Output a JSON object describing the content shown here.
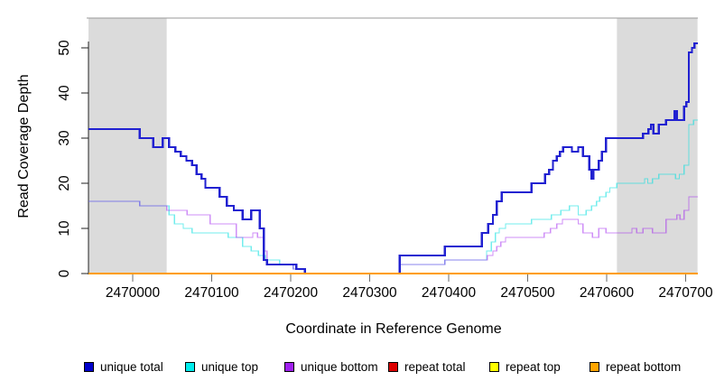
{
  "chart_data": {
    "type": "line",
    "title": "",
    "xlabel": "Coordinate in Reference Genome",
    "ylabel": "Read Coverage Depth",
    "xlim": [
      2469944,
      2470715
    ],
    "ylim": [
      0,
      52
    ],
    "x_ticks": [
      2470000,
      2470100,
      2470200,
      2470300,
      2470400,
      2470500,
      2470600,
      2470700
    ],
    "y_ticks": [
      0,
      10,
      20,
      30,
      40,
      50
    ],
    "grid": false,
    "legend_position": "bottom",
    "shaded_regions": [
      {
        "x0": 2469944,
        "x1": 2470043,
        "color": "#DBDBDB"
      },
      {
        "x0": 2470613,
        "x1": 2470715,
        "color": "#DBDBDB"
      }
    ],
    "series": [
      {
        "name": "repeat total",
        "color": "#DD0000",
        "opacity": 1,
        "width": 1.4,
        "steps": [
          [
            2469944,
            0
          ]
        ]
      },
      {
        "name": "repeat top",
        "color": "#FFFF00",
        "opacity": 1,
        "width": 1.4,
        "steps": [
          [
            2469944,
            0
          ]
        ]
      },
      {
        "name": "unique top",
        "color": "#00DEDE",
        "opacity": 0.55,
        "width": 1.4,
        "steps": [
          [
            2469944,
            16
          ],
          [
            2470009,
            15
          ],
          [
            2470046,
            13
          ],
          [
            2470053,
            11
          ],
          [
            2470064,
            10
          ],
          [
            2470075,
            9
          ],
          [
            2470121,
            8
          ],
          [
            2470139,
            6
          ],
          [
            2470150,
            5
          ],
          [
            2470159,
            4
          ],
          [
            2470168,
            3
          ],
          [
            2470186,
            2
          ],
          [
            2470203,
            1
          ],
          [
            2470218,
            0
          ],
          [
            2470338,
            2
          ],
          [
            2470395,
            3
          ],
          [
            2470448,
            5
          ],
          [
            2470454,
            7
          ],
          [
            2470459,
            9
          ],
          [
            2470464,
            10
          ],
          [
            2470472,
            11
          ],
          [
            2470505,
            12
          ],
          [
            2470530,
            13
          ],
          [
            2470542,
            14
          ],
          [
            2470553,
            15
          ],
          [
            2470564,
            13
          ],
          [
            2470574,
            14
          ],
          [
            2470581,
            15
          ],
          [
            2470587,
            16
          ],
          [
            2470591,
            17
          ],
          [
            2470599,
            18
          ],
          [
            2470604,
            19
          ],
          [
            2470613,
            20
          ],
          [
            2470648,
            21
          ],
          [
            2470652,
            20
          ],
          [
            2470658,
            21
          ],
          [
            2470666,
            22
          ],
          [
            2470687,
            21
          ],
          [
            2470692,
            22
          ],
          [
            2470698,
            24
          ],
          [
            2470704,
            33
          ],
          [
            2470710,
            34
          ]
        ]
      },
      {
        "name": "unique bottom",
        "color": "#A020F0",
        "opacity": 0.5,
        "width": 1.4,
        "steps": [
          [
            2469944,
            16
          ],
          [
            2470009,
            15
          ],
          [
            2470043,
            14
          ],
          [
            2470069,
            13
          ],
          [
            2470098,
            11
          ],
          [
            2470131,
            8
          ],
          [
            2470152,
            9
          ],
          [
            2470158,
            8
          ],
          [
            2470166,
            5
          ],
          [
            2470170,
            2
          ],
          [
            2470203,
            1
          ],
          [
            2470218,
            0
          ],
          [
            2470338,
            2
          ],
          [
            2470395,
            3
          ],
          [
            2470449,
            4
          ],
          [
            2470456,
            5
          ],
          [
            2470461,
            6
          ],
          [
            2470466,
            7
          ],
          [
            2470472,
            8
          ],
          [
            2470521,
            9
          ],
          [
            2470529,
            10
          ],
          [
            2470537,
            11
          ],
          [
            2470544,
            12
          ],
          [
            2470564,
            11
          ],
          [
            2470570,
            9
          ],
          [
            2470582,
            8
          ],
          [
            2470590,
            10
          ],
          [
            2470599,
            9
          ],
          [
            2470632,
            10
          ],
          [
            2470638,
            9
          ],
          [
            2470646,
            10
          ],
          [
            2470658,
            9
          ],
          [
            2470675,
            12
          ],
          [
            2470689,
            13
          ],
          [
            2470693,
            12
          ],
          [
            2470698,
            14
          ],
          [
            2470704,
            17
          ]
        ]
      },
      {
        "name": "unique total",
        "color": "#2121D1",
        "opacity": 1,
        "width": 2.4,
        "steps": [
          [
            2469944,
            32
          ],
          [
            2470009,
            30
          ],
          [
            2470026,
            28
          ],
          [
            2470038,
            30
          ],
          [
            2470046,
            28
          ],
          [
            2470054,
            27
          ],
          [
            2470061,
            26
          ],
          [
            2470068,
            25
          ],
          [
            2470075,
            24
          ],
          [
            2470081,
            22
          ],
          [
            2470087,
            21
          ],
          [
            2470092,
            19
          ],
          [
            2470110,
            17
          ],
          [
            2470119,
            15
          ],
          [
            2470128,
            14
          ],
          [
            2470139,
            12
          ],
          [
            2470150,
            14
          ],
          [
            2470161,
            10
          ],
          [
            2470166,
            3
          ],
          [
            2470170,
            2
          ],
          [
            2470207,
            1
          ],
          [
            2470218,
            0
          ],
          [
            2470338,
            4
          ],
          [
            2470395,
            6
          ],
          [
            2470442,
            9
          ],
          [
            2470450,
            11
          ],
          [
            2470456,
            13
          ],
          [
            2470461,
            16
          ],
          [
            2470467,
            18
          ],
          [
            2470505,
            20
          ],
          [
            2470522,
            22
          ],
          [
            2470527,
            23
          ],
          [
            2470532,
            25
          ],
          [
            2470537,
            26
          ],
          [
            2470541,
            27
          ],
          [
            2470545,
            28
          ],
          [
            2470556,
            27
          ],
          [
            2470564,
            28
          ],
          [
            2470570,
            26
          ],
          [
            2470578,
            23
          ],
          [
            2470581,
            21
          ],
          [
            2470583,
            23
          ],
          [
            2470590,
            25
          ],
          [
            2470594,
            27
          ],
          [
            2470599,
            30
          ],
          [
            2470646,
            31
          ],
          [
            2470653,
            32
          ],
          [
            2470656,
            33
          ],
          [
            2470659,
            31
          ],
          [
            2470666,
            33
          ],
          [
            2470675,
            34
          ],
          [
            2470686,
            36
          ],
          [
            2470689,
            34
          ],
          [
            2470698,
            37
          ],
          [
            2470701,
            38
          ],
          [
            2470704,
            49
          ],
          [
            2470708,
            50
          ],
          [
            2470711,
            51
          ]
        ]
      },
      {
        "name": "repeat bottom",
        "color": "#FF9D00",
        "opacity": 1,
        "width": 1.7,
        "steps": [
          [
            2469944,
            0
          ]
        ]
      }
    ],
    "legend": [
      {
        "label": "unique total",
        "color": "#0000CC"
      },
      {
        "label": "unique top",
        "color": "#00EEEE"
      },
      {
        "label": "unique bottom",
        "color": "#A020F0"
      },
      {
        "label": "repeat total",
        "color": "#DD0000"
      },
      {
        "label": "repeat top",
        "color": "#FFFF00"
      },
      {
        "label": "repeat bottom",
        "color": "#FFA500"
      }
    ]
  }
}
